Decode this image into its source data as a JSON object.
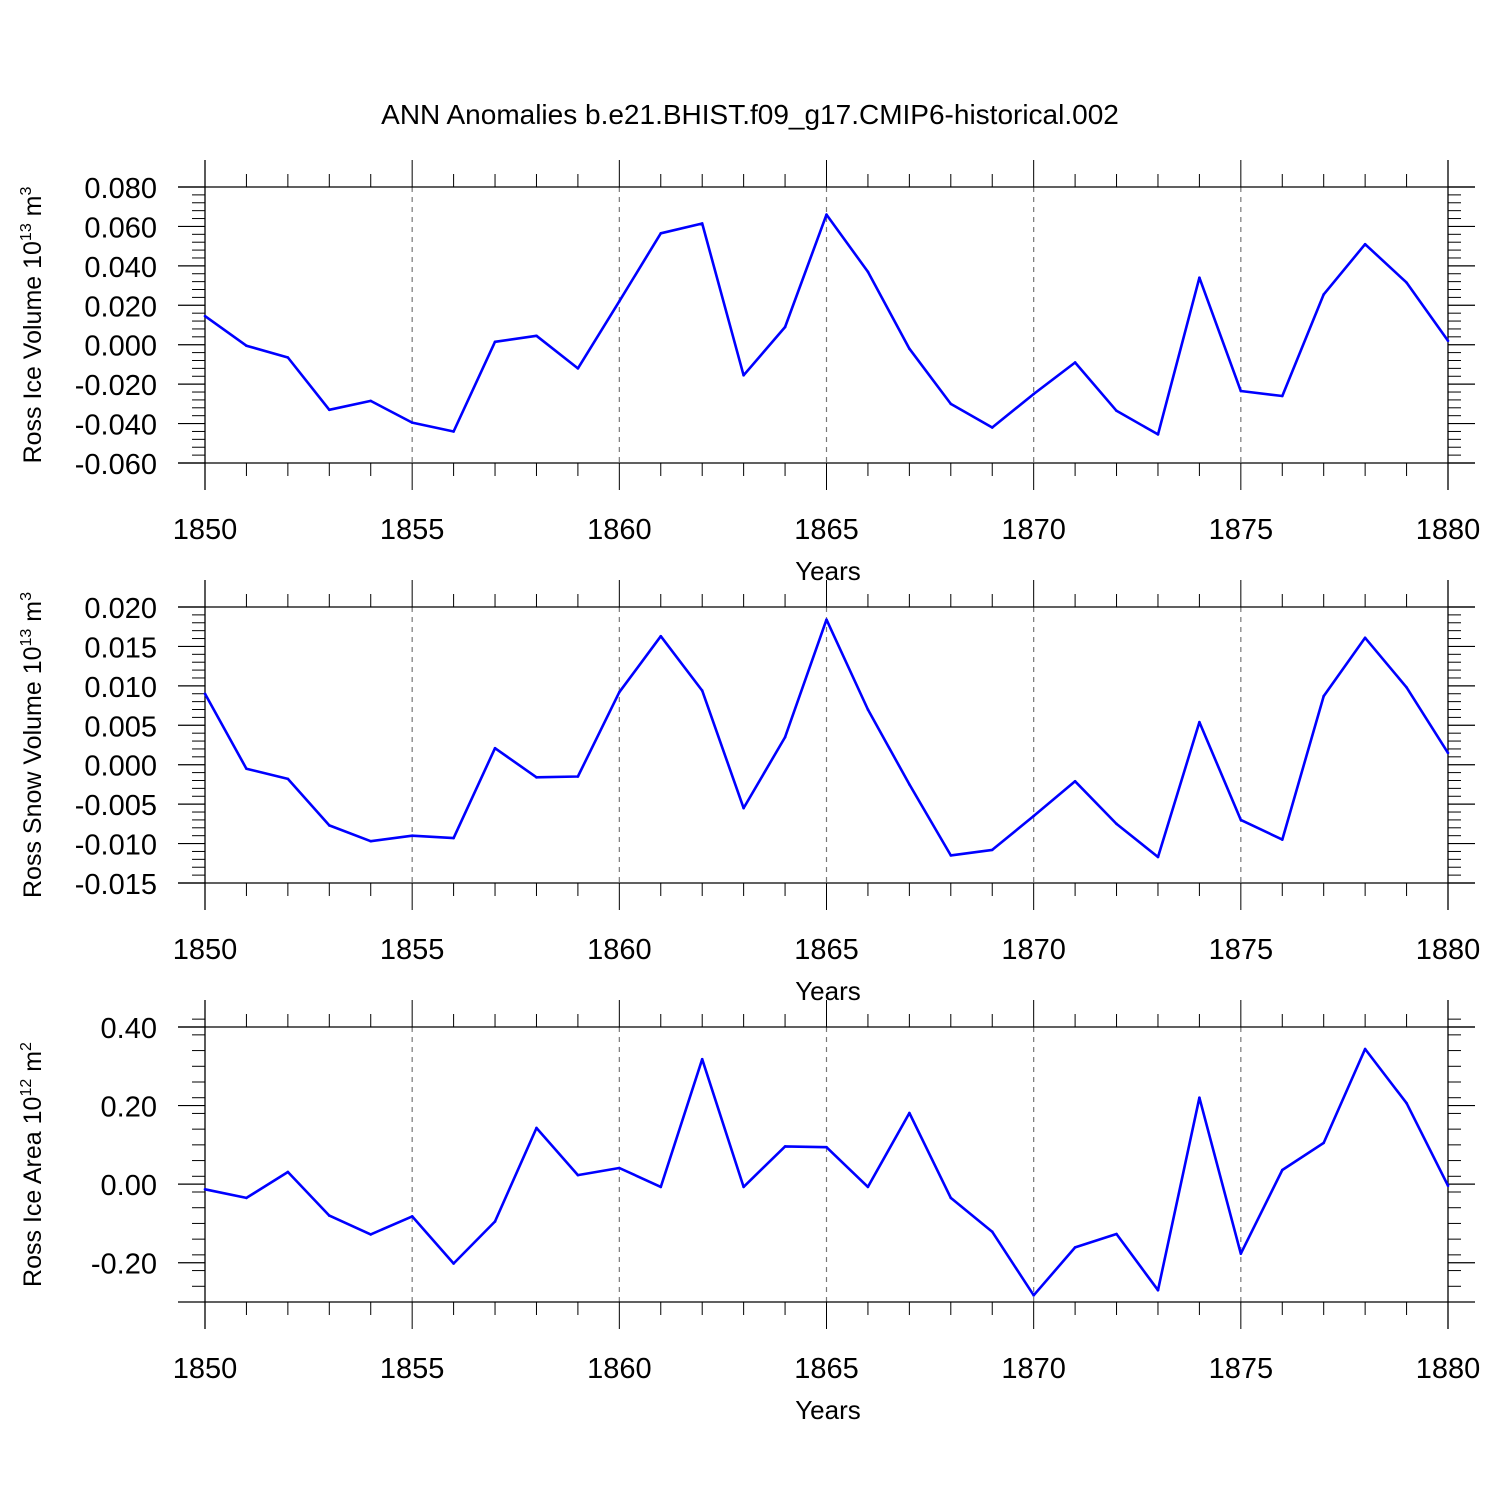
{
  "title": "ANN Anomalies b.e21.BHIST.f09_g17.CMIP6-historical.002",
  "line_color": "#0000ff",
  "chart_data": [
    {
      "type": "line",
      "ylabel": "Ross Ice Volume 10",
      "ylabel_exp": "13",
      "ylabel_unit": " m",
      "ylabel_unit_exp": "3",
      "xlabel": "Years",
      "xlim": [
        1850,
        1880
      ],
      "ylim": [
        -0.06,
        0.08
      ],
      "xticks": [
        1850,
        1855,
        1860,
        1865,
        1870,
        1875,
        1880
      ],
      "xtick_labels": [
        "1850",
        "1855",
        "1860",
        "1865",
        "1870",
        "1875",
        "1880"
      ],
      "yticks": [
        -0.06,
        -0.04,
        -0.02,
        0.0,
        0.02,
        0.04,
        0.06,
        0.08
      ],
      "ytick_labels": [
        "-0.060",
        "-0.040",
        "-0.020",
        "0.000",
        "0.020",
        "0.040",
        "0.060",
        "0.080"
      ],
      "grid": "vertical dashed at major x ticks",
      "x": [
        1850,
        1851,
        1852,
        1853,
        1854,
        1855,
        1856,
        1857,
        1858,
        1859,
        1860,
        1861,
        1862,
        1863,
        1864,
        1865,
        1866,
        1867,
        1868,
        1869,
        1870,
        1871,
        1872,
        1873,
        1874,
        1875,
        1876,
        1877,
        1878,
        1879,
        1880
      ],
      "values": [
        0.0145,
        -0.0005,
        -0.0065,
        -0.033,
        -0.0285,
        -0.0395,
        -0.044,
        0.0015,
        0.0045,
        -0.012,
        0.022,
        0.0565,
        0.0615,
        -0.0155,
        0.009,
        0.066,
        0.037,
        -0.002,
        -0.03,
        -0.042,
        -0.025,
        -0.009,
        -0.0335,
        -0.0455,
        0.034,
        -0.0235,
        -0.026,
        0.0255,
        0.051,
        0.0315,
        0.002
      ]
    },
    {
      "type": "line",
      "ylabel": "Ross Snow Volume 10",
      "ylabel_exp": "13",
      "ylabel_unit": " m",
      "ylabel_unit_exp": "3",
      "xlabel": "Years",
      "xlim": [
        1850,
        1880
      ],
      "ylim": [
        -0.015,
        0.02
      ],
      "xticks": [
        1850,
        1855,
        1860,
        1865,
        1870,
        1875,
        1880
      ],
      "xtick_labels": [
        "1850",
        "1855",
        "1860",
        "1865",
        "1870",
        "1875",
        "1880"
      ],
      "yticks": [
        -0.015,
        -0.01,
        -0.005,
        0.0,
        0.005,
        0.01,
        0.015,
        0.02
      ],
      "ytick_labels": [
        "-0.015",
        "-0.010",
        "-0.005",
        "0.000",
        "0.005",
        "0.010",
        "0.015",
        "0.020"
      ],
      "grid": "vertical dashed at major x ticks",
      "x": [
        1850,
        1851,
        1852,
        1853,
        1854,
        1855,
        1856,
        1857,
        1858,
        1859,
        1860,
        1861,
        1862,
        1863,
        1864,
        1865,
        1866,
        1867,
        1868,
        1869,
        1870,
        1871,
        1872,
        1873,
        1874,
        1875,
        1876,
        1877,
        1878,
        1879,
        1880
      ],
      "values": [
        0.009,
        -0.0005,
        -0.0018,
        -0.0077,
        -0.0097,
        -0.009,
        -0.0093,
        0.0021,
        -0.0016,
        -0.0015,
        0.0092,
        0.0163,
        0.0094,
        -0.0055,
        0.0035,
        0.0184,
        0.007,
        -0.0025,
        -0.0115,
        -0.0108,
        -0.0065,
        -0.0021,
        -0.0075,
        -0.0117,
        0.0054,
        -0.007,
        -0.0095,
        0.0087,
        0.0161,
        0.0098,
        0.0015
      ]
    },
    {
      "type": "line",
      "ylabel": "Ross Ice Area 10",
      "ylabel_exp": "12",
      "ylabel_unit": " m",
      "ylabel_unit_exp": "2",
      "xlabel": "Years",
      "xlim": [
        1850,
        1880
      ],
      "ylim": [
        -0.3,
        0.4
      ],
      "xticks": [
        1850,
        1855,
        1860,
        1865,
        1870,
        1875,
        1880
      ],
      "xtick_labels": [
        "1850",
        "1855",
        "1860",
        "1865",
        "1870",
        "1875",
        "1880"
      ],
      "yticks": [
        -0.2,
        0.0,
        0.2,
        0.4
      ],
      "ytick_labels": [
        "-0.20",
        "0.00",
        "0.20",
        "0.40"
      ],
      "grid": "vertical dashed at major x ticks",
      "x": [
        1850,
        1851,
        1852,
        1853,
        1854,
        1855,
        1856,
        1857,
        1858,
        1859,
        1860,
        1861,
        1862,
        1863,
        1864,
        1865,
        1866,
        1867,
        1868,
        1869,
        1870,
        1871,
        1872,
        1873,
        1874,
        1875,
        1876,
        1877,
        1878,
        1879,
        1880
      ],
      "values": [
        -0.013,
        -0.035,
        0.031,
        -0.08,
        -0.128,
        -0.082,
        -0.202,
        -0.095,
        0.143,
        0.023,
        0.041,
        -0.007,
        0.318,
        -0.007,
        0.096,
        0.094,
        -0.007,
        0.181,
        -0.035,
        -0.121,
        -0.283,
        -0.161,
        -0.127,
        -0.27,
        0.22,
        -0.177,
        0.036,
        0.105,
        0.344,
        0.206,
        -0.004
      ]
    }
  ]
}
